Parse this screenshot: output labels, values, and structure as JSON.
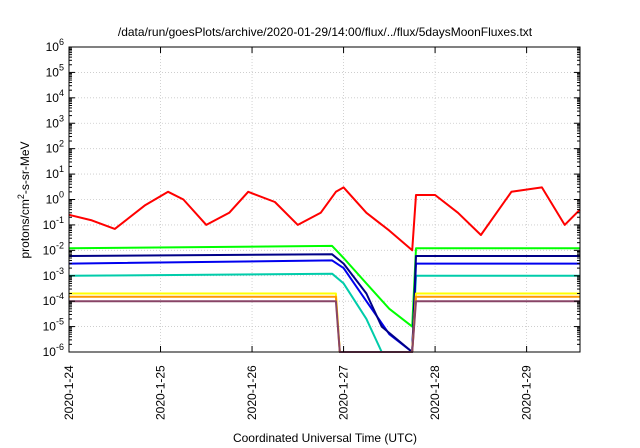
{
  "chart_data": {
    "type": "line",
    "title": "/data/run/goesPlots/archive/2020-01-29/14:00/flux/../flux/5daysMoonFluxes.txt",
    "xlabel": "Coordinated Universal Time (UTC)",
    "ylabel_parts": [
      "protons/cm",
      "2",
      "-s-sr-MeV"
    ],
    "y_scale": "log",
    "ylim": [
      1e-06,
      1000000.0
    ],
    "y_ticks": [
      {
        "value": 1000000.0,
        "base": "10",
        "exp": "6"
      },
      {
        "value": 100000.0,
        "base": "10",
        "exp": "5"
      },
      {
        "value": 10000.0,
        "base": "10",
        "exp": "4"
      },
      {
        "value": 1000.0,
        "base": "10",
        "exp": "3"
      },
      {
        "value": 100.0,
        "base": "10",
        "exp": "2"
      },
      {
        "value": 10.0,
        "base": "10",
        "exp": "1"
      },
      {
        "value": 1.0,
        "base": "10",
        "exp": "0"
      },
      {
        "value": 0.1,
        "base": "10",
        "exp": "-1"
      },
      {
        "value": 0.01,
        "base": "10",
        "exp": "-2"
      },
      {
        "value": 0.001,
        "base": "10",
        "exp": "-3"
      },
      {
        "value": 0.0001,
        "base": "10",
        "exp": "-4"
      },
      {
        "value": 1e-05,
        "base": "10",
        "exp": "-5"
      },
      {
        "value": 1e-06,
        "base": "10",
        "exp": "-6"
      }
    ],
    "xlim": [
      "2020-01-24 00:00",
      "2020-01-29 14:00"
    ],
    "x_ticks": [
      "2020-1-24",
      "2020-1-25",
      "2020-1-26",
      "2020-1-27",
      "2020-1-28",
      "2020-1-29"
    ],
    "grid": true,
    "legend": "none",
    "series": [
      {
        "color": "#ff0000",
        "x": [
          "2020-01-24 00:00",
          "2020-01-24 06:00",
          "2020-01-24 12:00",
          "2020-01-24 20:00",
          "2020-01-25 02:00",
          "2020-01-25 06:00",
          "2020-01-25 12:00",
          "2020-01-25 18:00",
          "2020-01-25 23:00",
          "2020-01-26 06:00",
          "2020-01-26 12:00",
          "2020-01-26 18:00",
          "2020-01-26 22:00",
          "2020-01-27 00:00",
          "2020-01-27 06:00",
          "2020-01-27 12:00",
          "2020-01-27 18:00",
          "2020-01-27 19:00",
          "2020-01-28 00:00",
          "2020-01-28 06:00",
          "2020-01-28 12:00",
          "2020-01-28 20:00",
          "2020-01-29 04:00",
          "2020-01-29 10:00",
          "2020-01-29 14:00"
        ],
        "y": [
          0.25,
          0.15,
          0.07,
          0.6,
          2.0,
          1.0,
          0.1,
          0.3,
          2.0,
          0.8,
          0.1,
          0.3,
          2.0,
          3.0,
          0.3,
          0.06,
          0.01,
          1.5,
          1.5,
          0.3,
          0.04,
          2.0,
          3.0,
          0.1,
          0.4
        ]
      },
      {
        "color": "#00ff00",
        "x": [
          "2020-01-24 00:00",
          "2020-01-26 21:00",
          "2020-01-27 00:00",
          "2020-01-27 06:00",
          "2020-01-27 12:00",
          "2020-01-27 18:00",
          "2020-01-27 19:00",
          "2020-01-29 14:00"
        ],
        "y": [
          0.012,
          0.015,
          0.005,
          0.0005,
          5e-05,
          1e-05,
          0.012,
          0.012
        ]
      },
      {
        "color": "#00ccaa",
        "x": [
          "2020-01-24 00:00",
          "2020-01-26 21:00",
          "2020-01-27 00:00",
          "2020-01-27 06:00",
          "2020-01-27 10:00",
          "2020-01-27 18:00",
          "2020-01-27 19:00",
          "2020-01-29 14:00"
        ],
        "y": [
          0.001,
          0.0012,
          0.0005,
          2e-05,
          1e-06,
          1e-06,
          0.001,
          0.001
        ]
      },
      {
        "color": "#0000ee",
        "x": [
          "2020-01-24 00:00",
          "2020-01-26 21:00",
          "2020-01-27 00:00",
          "2020-01-27 06:00",
          "2020-01-27 12:00",
          "2020-01-27 18:00",
          "2020-01-27 19:00",
          "2020-01-29 14:00"
        ],
        "y": [
          0.003,
          0.004,
          0.002,
          0.0001,
          5e-06,
          1e-06,
          0.003,
          0.003
        ]
      },
      {
        "color": "#000088",
        "x": [
          "2020-01-24 00:00",
          "2020-01-26 21:00",
          "2020-01-27 00:00",
          "2020-01-27 06:00",
          "2020-01-27 10:00",
          "2020-01-27 18:00",
          "2020-01-27 19:00",
          "2020-01-29 14:00"
        ],
        "y": [
          0.006,
          0.007,
          0.003,
          0.0002,
          1e-05,
          1e-06,
          0.006,
          0.006
        ]
      },
      {
        "color": "#ffff00",
        "x": [
          "2020-01-24 00:00",
          "2020-01-26 22:00",
          "2020-01-26 23:00",
          "2020-01-27 18:00",
          "2020-01-27 19:00",
          "2020-01-29 14:00"
        ],
        "y": [
          0.0002,
          0.0002,
          1e-06,
          1e-06,
          0.0002,
          0.0002
        ]
      },
      {
        "color": "#ff9900",
        "x": [
          "2020-01-24 00:00",
          "2020-01-26 22:00",
          "2020-01-26 23:00",
          "2020-01-27 18:00",
          "2020-01-27 19:00",
          "2020-01-29 14:00"
        ],
        "y": [
          0.00015,
          0.00015,
          1e-06,
          1e-06,
          0.00015,
          0.00015
        ]
      },
      {
        "color": "#884466",
        "x": [
          "2020-01-24 00:00",
          "2020-01-26 22:00",
          "2020-01-26 23:00",
          "2020-01-27 18:00",
          "2020-01-27 19:00",
          "2020-01-29 14:00"
        ],
        "y": [
          0.0001,
          0.0001,
          1e-06,
          1e-06,
          0.0001,
          0.0001
        ]
      }
    ]
  }
}
